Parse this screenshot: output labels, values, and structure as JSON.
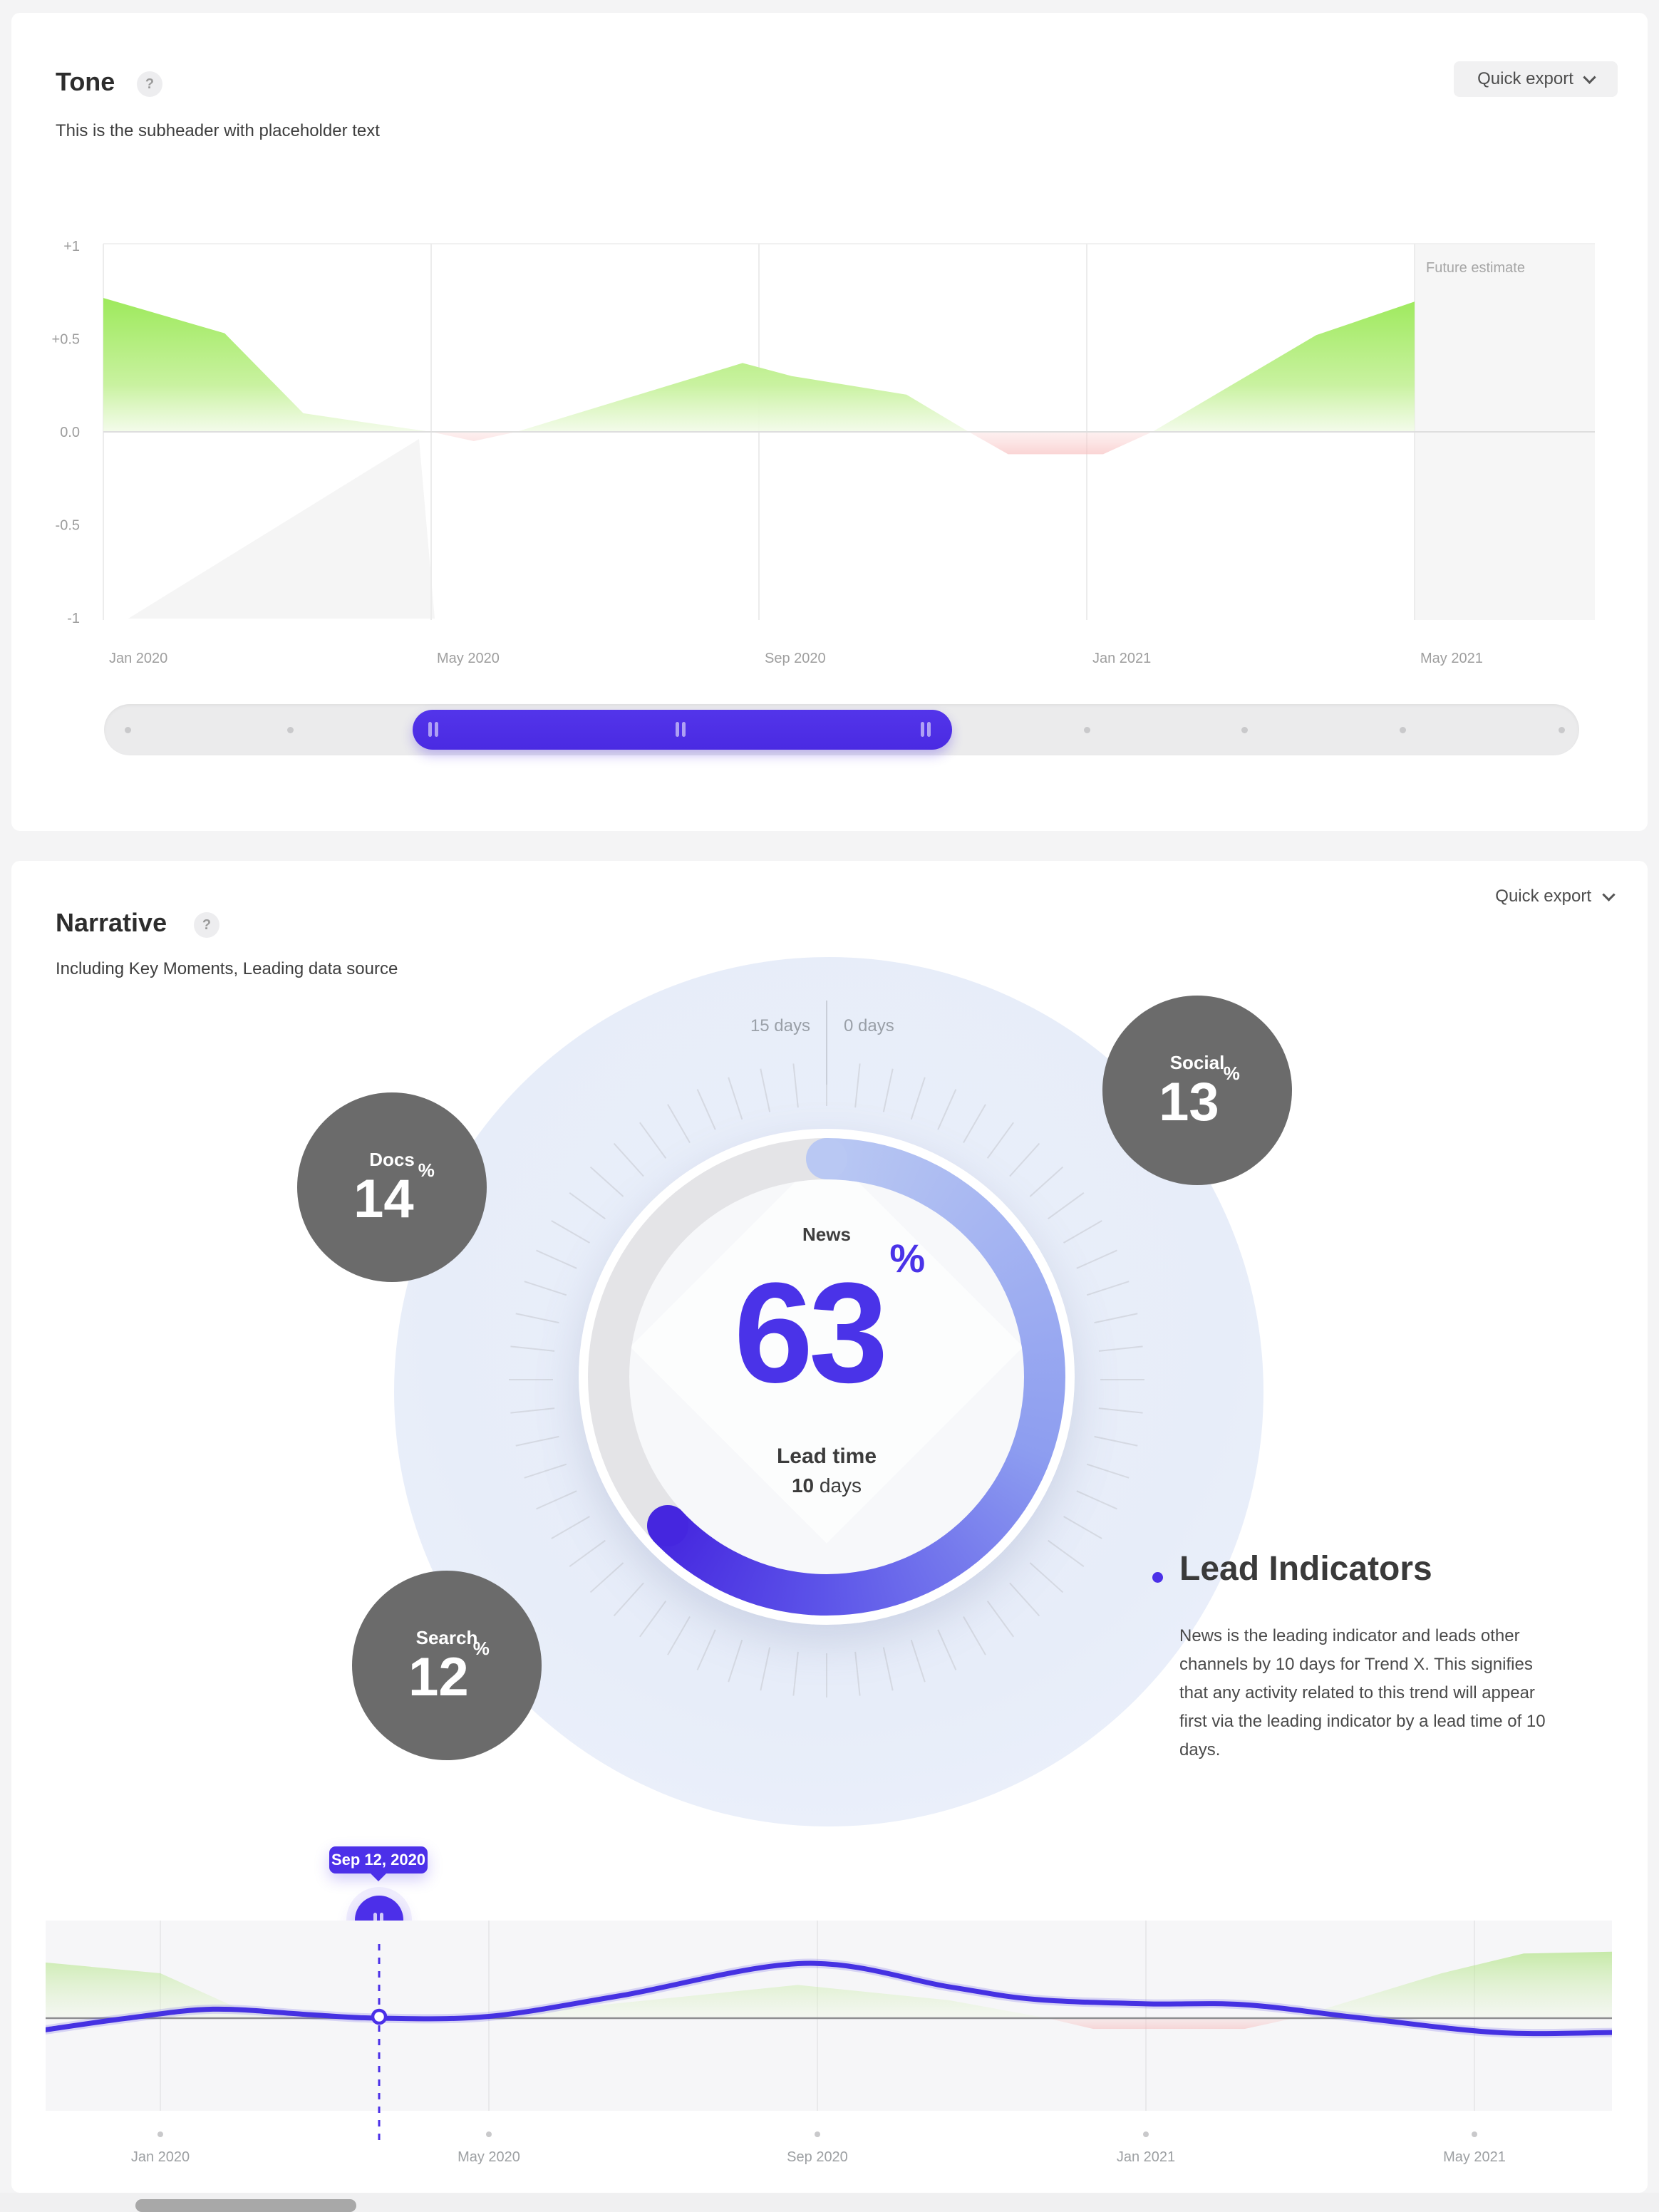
{
  "colors": {
    "accent": "#4b30e8",
    "arc_start": "#b9c8f3",
    "arc_mid": "#8d9df0",
    "arc_deep": "#5d55e9",
    "arc_end": "#4526df",
    "ring_track": "#e4e4e7",
    "positive_green": "#86e33c",
    "negative_red": "#f49b9b",
    "source_circle_gray": "#6b6b6b",
    "halo_blue": "#e9eef9"
  },
  "tone_card": {
    "title": "Tone",
    "help_icon": "?",
    "subtitle": "This is the subheader with placeholder text",
    "quick_export_label": "Quick export",
    "slider": {
      "range_start": 0.209,
      "range_width": 0.366,
      "dot_positions": [
        0.016,
        0.126,
        0.666,
        0.773,
        0.88,
        0.988
      ],
      "handle_positions": [
        0.041,
        0.5,
        0.954
      ],
      "handle_icon": "pause"
    }
  },
  "narrative_card": {
    "title": "Narrative",
    "help_icon": "?",
    "subtitle": "Including Key Moments, Leading data source",
    "quick_export_label": "Quick export",
    "gauge": {
      "scale_left_label": "15 days",
      "scale_right_label": "0 days",
      "center_label": "News",
      "value": 63,
      "unit": "%",
      "lead_time_label": "Lead time",
      "lead_time_value_bold": "10",
      "lead_time_value_rest": " days"
    },
    "sources": [
      {
        "name": "Docs",
        "value": 14,
        "unit": "%"
      },
      {
        "name": "Social",
        "value": 13,
        "unit": "%"
      },
      {
        "name": "Search",
        "value": 12,
        "unit": "%"
      }
    ],
    "lead_indicators": {
      "heading": "Lead Indicators",
      "body": "News is the leading indicator and leads other channels by 10 days for Trend X. This signifies that any activity related to this trend will appear first via the leading indicator by a lead time of 10 days."
    }
  },
  "chart_data": [
    {
      "id": "tone-trend",
      "type": "area",
      "x_tick_labels": [
        "Jan 2020",
        "May 2020",
        "Sep 2020",
        "Jan 2021",
        "May 2021"
      ],
      "x_tick_values": [
        0,
        1,
        2,
        3,
        4
      ],
      "y_tick_labels": [
        "+1",
        "+0.5",
        "0.0",
        "-0.5",
        "-1"
      ],
      "y_tick_values": [
        1,
        0.5,
        0,
        -0.5,
        -1
      ],
      "xlim": [
        0,
        4.56
      ],
      "ylim": [
        -1,
        1
      ],
      "future_region": {
        "start": 4.0,
        "label": "Future estimate"
      },
      "series": [
        {
          "name": "tone",
          "type": "area",
          "points": [
            [
              0,
              0.72
            ],
            [
              0.37,
              0.53
            ],
            [
              0.61,
              0.1
            ],
            [
              0.84,
              0.04
            ],
            [
              1.0,
              0.0
            ],
            [
              1.13,
              -0.05
            ],
            [
              1.26,
              0.0
            ],
            [
              1.95,
              0.37
            ],
            [
              2.1,
              0.3
            ],
            [
              2.45,
              0.2
            ],
            [
              2.64,
              0.0
            ],
            [
              2.76,
              -0.12
            ],
            [
              3.05,
              -0.12
            ],
            [
              3.2,
              0.0
            ],
            [
              3.7,
              0.52
            ],
            [
              4.0,
              0.7
            ]
          ]
        }
      ]
    },
    {
      "id": "narrative-timeline",
      "type": "area",
      "x_tick_labels": [
        "Jan 2020",
        "May 2020",
        "Sep 2020",
        "Jan 2021",
        "May 2021"
      ],
      "x_tick_values": [
        0,
        1,
        2,
        3,
        4
      ],
      "xlim": [
        -0.35,
        4.42
      ],
      "ylim": [
        -1,
        1
      ],
      "marker": {
        "label": "Sep 12, 2020",
        "x": 0.666
      },
      "series": [
        {
          "name": "tone",
          "type": "area",
          "points": [
            [
              -0.35,
              0.62
            ],
            [
              0,
              0.5
            ],
            [
              0.23,
              0.12
            ],
            [
              0.45,
              0.03
            ],
            [
              0.62,
              0.0
            ],
            [
              0.78,
              -0.04
            ],
            [
              0.95,
              0.0
            ],
            [
              1.94,
              0.37
            ],
            [
              2.4,
              0.2
            ],
            [
              2.7,
              0.0
            ],
            [
              2.84,
              -0.12
            ],
            [
              3.3,
              -0.12
            ],
            [
              3.45,
              0.0
            ],
            [
              3.9,
              0.5
            ],
            [
              4.15,
              0.72
            ],
            [
              4.42,
              0.74
            ]
          ]
        },
        {
          "name": "leading-indicator",
          "type": "line",
          "points": [
            [
              -0.35,
              -0.13
            ],
            [
              -0.1,
              0.0
            ],
            [
              0.16,
              0.1
            ],
            [
              0.45,
              0.04
            ],
            [
              0.666,
              0.0
            ],
            [
              1.0,
              0.02
            ],
            [
              1.4,
              0.25
            ],
            [
              1.96,
              0.61
            ],
            [
              2.4,
              0.35
            ],
            [
              2.66,
              0.21
            ],
            [
              3.0,
              0.16
            ],
            [
              3.3,
              0.15
            ],
            [
              3.66,
              0.0
            ],
            [
              4.07,
              -0.16
            ],
            [
              4.42,
              -0.16
            ]
          ]
        }
      ]
    }
  ]
}
